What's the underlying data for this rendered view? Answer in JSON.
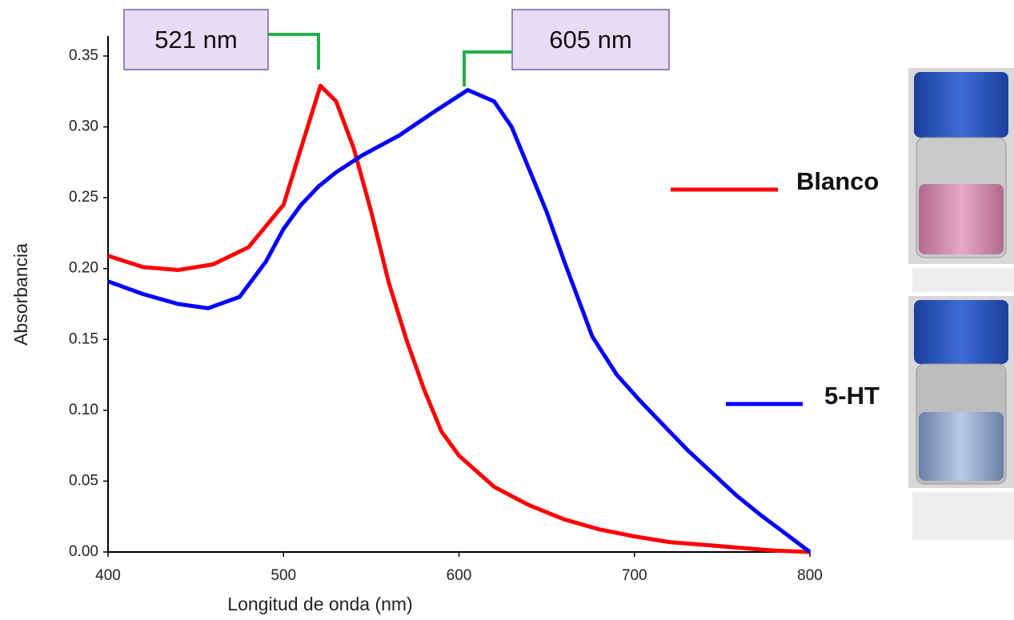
{
  "chart_data": {
    "type": "line",
    "xlabel": "Longitud de onda (nm)",
    "ylabel": "Absorbancia",
    "xlim": [
      400,
      800
    ],
    "xticks": [
      400,
      500,
      600,
      700,
      800
    ],
    "ylim": [
      0,
      0.35
    ],
    "yticks": [
      {
        "value": 0,
        "label": "0.00"
      },
      {
        "value": 0.05,
        "label": "0.05"
      },
      {
        "value": 0.1,
        "label": "0.10"
      },
      {
        "value": 0.15,
        "label": "0.15"
      },
      {
        "value": 0.2,
        "label": "0.20"
      },
      {
        "value": 0.25,
        "label": "0.25"
      },
      {
        "value": 0.3,
        "label": "0.30"
      },
      {
        "value": 0.35,
        "label": "0.35"
      }
    ],
    "annotations": [
      "521 nm",
      "605 nm"
    ],
    "series": [
      {
        "name": "Blanco",
        "color": "#ff0000",
        "x": [
          400,
          420,
          440,
          460,
          480,
          500,
          510,
          521,
          530,
          540,
          550,
          560,
          570,
          580,
          590,
          600,
          620,
          640,
          660,
          680,
          700,
          720,
          740,
          760,
          780,
          800
        ],
        "values": [
          0.209,
          0.201,
          0.199,
          0.203,
          0.215,
          0.245,
          0.285,
          0.329,
          0.318,
          0.285,
          0.24,
          0.19,
          0.15,
          0.115,
          0.085,
          0.068,
          0.046,
          0.033,
          0.023,
          0.016,
          0.011,
          0.007,
          0.005,
          0.003,
          0.001,
          0
        ]
      },
      {
        "name": "5-HT",
        "color": "#0000ff",
        "x": [
          400,
          420,
          440,
          457,
          475,
          490,
          500,
          510,
          520,
          530,
          545,
          566,
          585,
          605,
          620,
          630,
          640,
          650,
          660,
          676,
          690,
          703,
          720,
          731,
          745,
          758,
          772,
          785,
          800
        ],
        "values": [
          0.191,
          0.182,
          0.175,
          0.172,
          0.18,
          0.205,
          0.228,
          0.245,
          0.258,
          0.268,
          0.28,
          0.294,
          0.31,
          0.326,
          0.318,
          0.3,
          0.27,
          0.24,
          0.205,
          0.152,
          0.125,
          0.107,
          0.085,
          0.071,
          0.055,
          0.04,
          0.026,
          0.014,
          0
        ]
      }
    ]
  }
}
